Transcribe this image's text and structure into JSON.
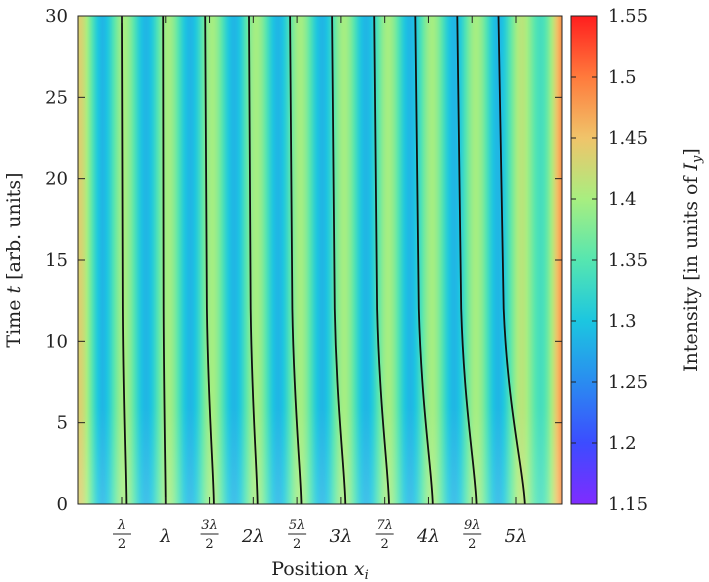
{
  "chart_data": {
    "type": "heatmap",
    "xlabel": "Position x_i",
    "ylabel": "Time t [arb. units]",
    "ylim": [
      0,
      30
    ],
    "yticks": [
      "0",
      "5",
      "10",
      "15",
      "20",
      "25",
      "30"
    ],
    "xtick_positions_in_wavelengths": [
      0.5,
      1,
      1.5,
      2,
      2.5,
      3,
      3.5,
      4,
      4.5,
      5
    ],
    "xtick_labels": [
      {
        "num": "λ",
        "den": "2"
      },
      {
        "text": "λ"
      },
      {
        "num": "3λ",
        "den": "2"
      },
      {
        "text": "2λ"
      },
      {
        "num": "5λ",
        "den": "2"
      },
      {
        "text": "3λ"
      },
      {
        "num": "7λ",
        "den": "2"
      },
      {
        "text": "4λ"
      },
      {
        "num": "9λ",
        "den": "2"
      },
      {
        "text": "5λ"
      }
    ],
    "colorbar": {
      "label": "Intensity [in units of I_y]",
      "range": [
        1.15,
        1.55
      ],
      "ticks": [
        "1.15",
        "1.2",
        "1.25",
        "1.3",
        "1.35",
        "1.4",
        "1.45",
        "1.5",
        "1.55"
      ],
      "colormap": "rainbow"
    },
    "trajectories": [
      {
        "start_x": 0.55,
        "end_x": 0.5
      },
      {
        "start_x": 1.0,
        "end_x": 0.97
      },
      {
        "start_x": 1.55,
        "end_x": 1.45
      },
      {
        "start_x": 2.05,
        "end_x": 1.95
      },
      {
        "start_x": 2.55,
        "end_x": 2.42
      },
      {
        "start_x": 3.05,
        "end_x": 2.9
      },
      {
        "start_x": 3.55,
        "end_x": 3.38
      },
      {
        "start_x": 4.05,
        "end_x": 3.85
      },
      {
        "start_x": 4.55,
        "end_x": 4.33
      },
      {
        "start_x": 5.1,
        "end_x": 4.8
      }
    ]
  }
}
